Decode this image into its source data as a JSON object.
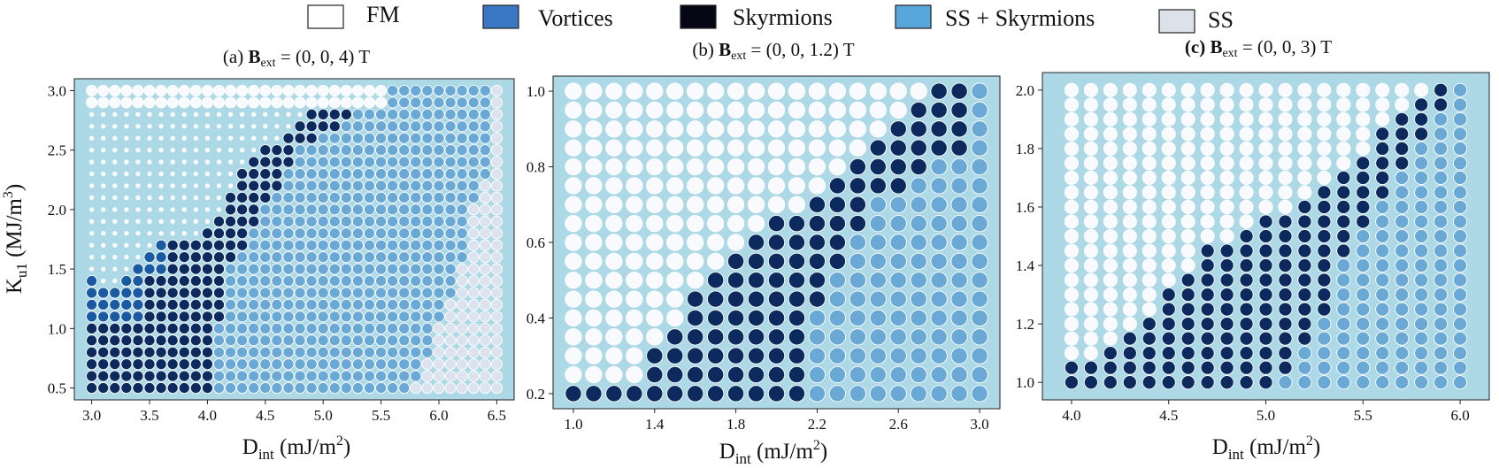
{
  "legend": {
    "items": [
      {
        "key": "FM",
        "label": "FM",
        "color": "#ffffff"
      },
      {
        "key": "V",
        "label": "Vortices",
        "color": "#3a78c4"
      },
      {
        "key": "K",
        "label": "Skyrmions",
        "color": "#050814"
      },
      {
        "key": "SSK",
        "label": "SS + Skyrmions",
        "color": "#58a6dc"
      },
      {
        "key": "SS",
        "label": "SS",
        "color": "#dde2ea"
      }
    ]
  },
  "colors": {
    "panel_bg": "#add8e6",
    "FM": "#f8fafd",
    "V": "#1a5aa3",
    "K": "#0d2a5e",
    "SSK": "#6aa8d6",
    "SS": "#dde3ee",
    "marker_edge": "#ffffff"
  },
  "chart_data": [
    {
      "type": "scatter",
      "title": {
        "prefix": "(a) ",
        "B": "B",
        "sub": "ext",
        "rest": " = (0, 0, 4) T"
      },
      "xlabel": {
        "main": "D",
        "sub": "int",
        "rest": " (mJ/m",
        "sup": "2",
        "end": ")"
      },
      "ylabel": {
        "main": "K",
        "sub": "u1",
        "rest": " (MJ/m",
        "sup": "3",
        "end": ")"
      },
      "xlim": [
        2.85,
        6.65
      ],
      "ylim": [
        0.4,
        3.1
      ],
      "x_start": 3.0,
      "x_step": 0.1,
      "nx": 36,
      "y_start": 0.5,
      "y_step": 0.1,
      "ny": 26,
      "xticks": [
        "3.0",
        "3.5",
        "4.0",
        "4.5",
        "5.0",
        "5.5",
        "6.0",
        "6.5"
      ],
      "yticks": [
        "0.5",
        "1.0",
        "1.5",
        "2.0",
        "2.5",
        "3.0"
      ],
      "fm_small_marker": true,
      "regions": {
        "vortices_box": {
          "x_max": 3.6,
          "y_max": 1.7
        },
        "skyrmion_boundary": [
          [
            3.0,
            1.4
          ],
          [
            3.1,
            1.3
          ],
          [
            3.4,
            1.5
          ],
          [
            3.6,
            1.7
          ],
          [
            4.0,
            1.8
          ],
          [
            4.3,
            2.3
          ],
          [
            4.5,
            2.5
          ],
          [
            4.9,
            2.8
          ],
          [
            5.3,
            2.8
          ]
        ],
        "sk_to_ssk": [
          [
            0.5,
            4.1
          ],
          [
            1.0,
            4.1
          ],
          [
            1.5,
            4.2
          ],
          [
            2.0,
            4.5
          ],
          [
            2.5,
            4.8
          ],
          [
            2.8,
            5.3
          ]
        ],
        "ssk_to_ss": [
          [
            0.5,
            5.8
          ],
          [
            1.0,
            6.0
          ],
          [
            1.5,
            6.2
          ],
          [
            2.0,
            6.3
          ],
          [
            2.5,
            6.5
          ]
        ],
        "ssk_top_x": 5.6
      }
    },
    {
      "type": "scatter",
      "title": {
        "prefix": "(b) ",
        "B": "B",
        "sub": "ext",
        "rest": " = (0, 0, 1.2) T"
      },
      "xlabel": {
        "main": "D",
        "sub": "int",
        "rest": " (mJ/m",
        "sup": "2",
        "end": ")"
      },
      "xlim": [
        0.9,
        3.1
      ],
      "ylim": [
        0.16,
        1.04
      ],
      "x_start": 1.0,
      "x_step": 0.1,
      "nx": 21,
      "y_start": 0.2,
      "y_step": 0.05,
      "ny": 17,
      "xticks": [
        "1.0",
        "1.4",
        "1.8",
        "2.2",
        "2.6",
        "3.0"
      ],
      "yticks": [
        "0.2",
        "0.4",
        "0.6",
        "0.8",
        "1.0"
      ],
      "fm_small_marker": false,
      "regions": {
        "skyrmion_boundary": [
          [
            1.25,
            0.2
          ],
          [
            1.6,
            0.45
          ],
          [
            2.0,
            0.65
          ],
          [
            2.5,
            0.85
          ],
          [
            2.75,
            1.0
          ]
        ],
        "sk_to_ssk": [
          [
            0.2,
            2.2
          ],
          [
            0.4,
            2.2
          ],
          [
            0.6,
            2.4
          ],
          [
            0.7,
            2.5
          ],
          [
            0.8,
            2.8
          ],
          [
            0.85,
            3.0
          ]
        ]
      }
    },
    {
      "type": "scatter",
      "title": {
        "prefix": "(c) ",
        "B": "B",
        "sub": "ext",
        "rest": " = (0, 0, 3) T"
      },
      "xlabel": {
        "main": "D",
        "sub": "int",
        "rest": " (mJ/m",
        "sup": "2",
        "end": ")"
      },
      "xlim": [
        3.85,
        6.15
      ],
      "ylim": [
        0.94,
        2.06
      ],
      "x_start": 4.0,
      "x_step": 0.1,
      "nx": 21,
      "y_start": 1.0,
      "y_step": 0.05,
      "ny": 21,
      "xticks": [
        "4.0",
        "4.5",
        "5.0",
        "5.5",
        "6.0"
      ],
      "yticks": [
        "1.0",
        "1.2",
        "1.4",
        "1.6",
        "1.8",
        "2.0"
      ],
      "fm_small_marker": false,
      "regions": {
        "skyrmion_boundary": [
          [
            4.0,
            1.05
          ],
          [
            4.2,
            1.1
          ],
          [
            4.5,
            1.3
          ],
          [
            4.7,
            1.45
          ],
          [
            5.0,
            1.55
          ],
          [
            5.3,
            1.65
          ],
          [
            5.6,
            1.85
          ],
          [
            5.9,
            2.0
          ]
        ],
        "sk_to_ssk": [
          [
            1.0,
            5.1
          ],
          [
            1.1,
            5.2
          ],
          [
            1.2,
            5.3
          ],
          [
            1.4,
            5.4
          ],
          [
            1.6,
            5.6
          ],
          [
            1.8,
            5.8
          ],
          [
            2.0,
            6.0
          ]
        ]
      }
    }
  ]
}
